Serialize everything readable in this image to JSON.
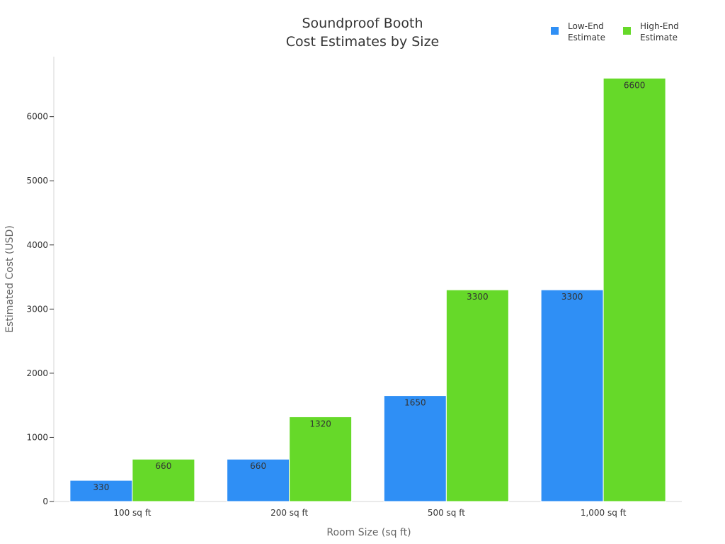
{
  "chart_data": {
    "type": "bar",
    "title_lines": [
      "Soundproof Booth",
      "Cost Estimates by Size"
    ],
    "xlabel": "Room Size (sq ft)",
    "ylabel": "Estimated Cost (USD)",
    "categories": [
      "100 sq ft",
      "200 sq ft",
      "500 sq ft",
      "1,000 sq ft"
    ],
    "series": [
      {
        "name": "Low-End\nEstimate",
        "values": [
          330,
          660,
          1650,
          3300
        ],
        "color": "#2f8ff5"
      },
      {
        "name": "High-End\nEstimate",
        "values": [
          660,
          1320,
          3300,
          6600
        ],
        "color": "#66d929"
      }
    ],
    "ylim": [
      0,
      6935
    ],
    "yticks": [
      0,
      1000,
      2000,
      3000,
      4000,
      5000,
      6000
    ],
    "ytick_labels": [
      "0",
      "1000",
      "2000",
      "3000",
      "4000",
      "5000",
      "6000"
    ],
    "grid": false,
    "legend_position": "top-right"
  }
}
